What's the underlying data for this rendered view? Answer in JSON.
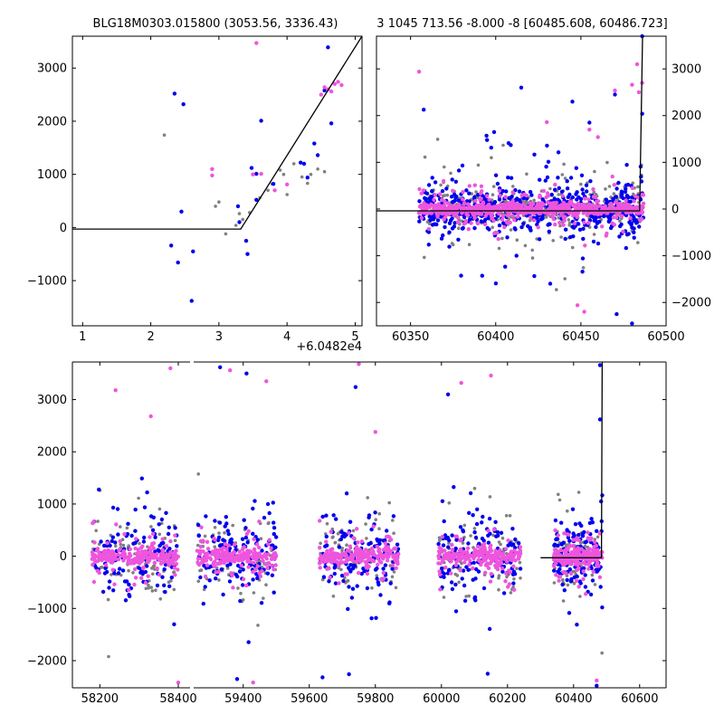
{
  "chart_data": [
    {
      "id": "zoom",
      "type": "scatter",
      "title": "BLG18M0303.015800 (3053.56, 3336.43)",
      "xlabel": "",
      "ylabel": "",
      "x_offset_label": "+6.0482e4",
      "xlim": [
        0.85,
        5.1
      ],
      "ylim": [
        -1850,
        3600
      ],
      "xticks": [
        1,
        2,
        3,
        4,
        5
      ],
      "xtick_labels": [
        "1",
        "2",
        "3",
        "4",
        "5"
      ],
      "yticks": [
        -1000,
        0,
        1000,
        2000,
        3000
      ],
      "ytick_labels": [
        "−1000",
        "0",
        "1000",
        "2000",
        "3000"
      ],
      "y_axis_side": "left",
      "grid": false,
      "series": [
        {
          "color": "#808080",
          "size": 1.8,
          "points": [
            [
              2.2,
              1740
            ],
            [
              3.1,
              -120
            ],
            [
              3.25,
              40
            ],
            [
              3.35,
              150
            ],
            [
              3.45,
              280
            ],
            [
              3.6,
              560
            ],
            [
              3.72,
              700
            ],
            [
              3.78,
              820
            ],
            [
              3.9,
              1080
            ],
            [
              4.0,
              620
            ],
            [
              4.1,
              1200
            ],
            [
              3.95,
              1000
            ],
            [
              4.3,
              830
            ],
            [
              4.35,
              1000
            ],
            [
              4.45,
              1100
            ],
            [
              4.55,
              1050
            ],
            [
              3.0,
              480
            ],
            [
              2.95,
              400
            ],
            [
              3.3,
              260
            ],
            [
              4.22,
              950
            ]
          ]
        },
        {
          "color": "#0000ee",
          "size": 2.2,
          "points": [
            [
              2.35,
              2520
            ],
            [
              2.48,
              2320
            ],
            [
              2.45,
              300
            ],
            [
              2.3,
              -340
            ],
            [
              2.4,
              -660
            ],
            [
              2.62,
              -450
            ],
            [
              2.6,
              -1380
            ],
            [
              3.42,
              -500
            ],
            [
              3.4,
              -250
            ],
            [
              3.28,
              400
            ],
            [
              3.3,
              100
            ],
            [
              3.48,
              1120
            ],
            [
              3.55,
              1010
            ],
            [
              3.55,
              520
            ],
            [
              3.62,
              2010
            ],
            [
              3.8,
              820
            ],
            [
              4.2,
              1220
            ],
            [
              4.25,
              1200
            ],
            [
              4.3,
              940
            ],
            [
              4.4,
              1580
            ],
            [
              4.45,
              1360
            ],
            [
              4.55,
              2580
            ],
            [
              4.6,
              3390
            ],
            [
              4.65,
              1960
            ]
          ]
        },
        {
          "color": "#ee55dd",
          "size": 2.2,
          "points": [
            [
              2.9,
              1100
            ],
            [
              2.9,
              980
            ],
            [
              3.55,
              3470
            ],
            [
              3.5,
              1000
            ],
            [
              3.62,
              1010
            ],
            [
              3.82,
              700
            ],
            [
              4.0,
              810
            ],
            [
              4.55,
              2640
            ],
            [
              4.6,
              2600
            ],
            [
              4.65,
              2560
            ],
            [
              4.7,
              2700
            ],
            [
              4.75,
              2740
            ],
            [
              4.5,
              2500
            ],
            [
              4.8,
              2680
            ]
          ]
        }
      ],
      "model": [
        [
          0.85,
          -30
        ],
        [
          3.32,
          -30
        ],
        [
          5.1,
          3600
        ]
      ]
    },
    {
      "id": "recent",
      "type": "scatter",
      "title": "3 1045 713.56 -8.000 -8 [60485.608, 60486.723]",
      "xlabel": "",
      "ylabel": "",
      "xlim": [
        60330,
        60500
      ],
      "ylim": [
        -2500,
        3700
      ],
      "xticks": [
        60350,
        60400,
        60450,
        60500
      ],
      "xtick_labels": [
        "60350",
        "60400",
        "60450",
        "60500"
      ],
      "yticks": [
        -2000,
        -1000,
        0,
        1000,
        2000,
        3000
      ],
      "ytick_labels": [
        "−2000",
        "−1000",
        "0",
        "1000",
        "2000",
        "3000"
      ],
      "y_axis_side": "right",
      "grid": false,
      "cloud": {
        "seasons": [
          [
            60355,
            60487
          ]
        ],
        "colors": [
          "#808080",
          "#0000ee",
          "#ee55dd"
        ],
        "counts": [
          420,
          520,
          680
        ],
        "sigma": [
          330,
          420,
          160
        ],
        "spread": [
          180,
          240,
          60
        ]
      },
      "series": [
        {
          "color": "#ee55dd",
          "size": 2.2,
          "points": [
            [
              60355,
              2940
            ],
            [
              60483,
              3100
            ],
            [
              60480,
              2660
            ],
            [
              60484,
              2500
            ],
            [
              60486,
              2700
            ],
            [
              60470,
              2540
            ],
            [
              60455,
              1700
            ],
            [
              60460,
              1540
            ],
            [
              60430,
              1860
            ],
            [
              60448,
              -2060
            ],
            [
              60452,
              -2200
            ]
          ]
        },
        {
          "color": "#0000ee",
          "size": 2.2,
          "points": [
            [
              60415,
              2600
            ],
            [
              60445,
              2300
            ],
            [
              60455,
              1850
            ],
            [
              60480,
              -2450
            ],
            [
              60486,
              3700
            ],
            [
              60471,
              -2250
            ],
            [
              60432,
              -1600
            ],
            [
              60470,
              2450
            ],
            [
              60486,
              2040
            ]
          ]
        }
      ],
      "model": [
        [
          60330,
          -40
        ],
        [
          60484.5,
          -40
        ],
        [
          60486.2,
          3700
        ]
      ]
    },
    {
      "id": "full",
      "type": "scatter",
      "title": "",
      "xlabel": "",
      "ylabel": "",
      "xlim": [
        58130,
        60680
      ],
      "ylim": [
        -2520,
        3720
      ],
      "xticks": [
        58200,
        58400,
        59400,
        59600,
        59800,
        60000,
        60200,
        60400,
        60600
      ],
      "xtick_labels": [
        "58200",
        "58400",
        "59400",
        "59600",
        "59800",
        "60000",
        "60200",
        "60400",
        "60600"
      ],
      "yticks": [
        -2000,
        -1000,
        0,
        1000,
        2000,
        3000
      ],
      "ytick_labels": [
        "−2000",
        "−1000",
        "0",
        "1000",
        "2000",
        "3000"
      ],
      "y_axis_side": "left",
      "grid": false,
      "axis_break": [
        58430,
        59250
      ],
      "x_map": [
        [
          58130,
          58430
        ],
        [
          59250,
          60680
        ]
      ],
      "cloud": {
        "seasons": [
          [
            58180,
            58400
          ],
          [
            59260,
            59500
          ],
          [
            59630,
            59870
          ],
          [
            59990,
            60240
          ],
          [
            60340,
            60487
          ]
        ],
        "colors": [
          "#808080",
          "#0000ee",
          "#ee55dd"
        ],
        "counts": [
          420,
          650,
          1150
        ],
        "sigma": [
          400,
          480,
          170
        ],
        "spread": [
          300,
          350,
          70
        ]
      },
      "series": [
        {
          "color": "#0000ee",
          "size": 2.2,
          "points": [
            [
              59330,
              3620
            ],
            [
              59410,
              3500
            ],
            [
              59640,
              -2320
            ],
            [
              59720,
              -2260
            ],
            [
              59740,
              3240
            ],
            [
              60020,
              3100
            ],
            [
              60140,
              -2250
            ],
            [
              60480,
              3660
            ],
            [
              60470,
              -2480
            ],
            [
              60480,
              2620
            ]
          ]
        },
        {
          "color": "#ee55dd",
          "size": 2.2,
          "points": [
            [
              58380,
              3600
            ],
            [
              58240,
              3180
            ],
            [
              58330,
              2680
            ],
            [
              58400,
              -2420
            ],
            [
              59360,
              3560
            ],
            [
              59430,
              -2420
            ],
            [
              59470,
              3350
            ],
            [
              59750,
              3680
            ],
            [
              59800,
              2380
            ],
            [
              60060,
              3320
            ],
            [
              60150,
              3460
            ],
            [
              60470,
              -2380
            ]
          ]
        }
      ],
      "model": [
        [
          60300,
          -30
        ],
        [
          60484.5,
          -30
        ],
        [
          60486.5,
          3720
        ]
      ]
    }
  ]
}
